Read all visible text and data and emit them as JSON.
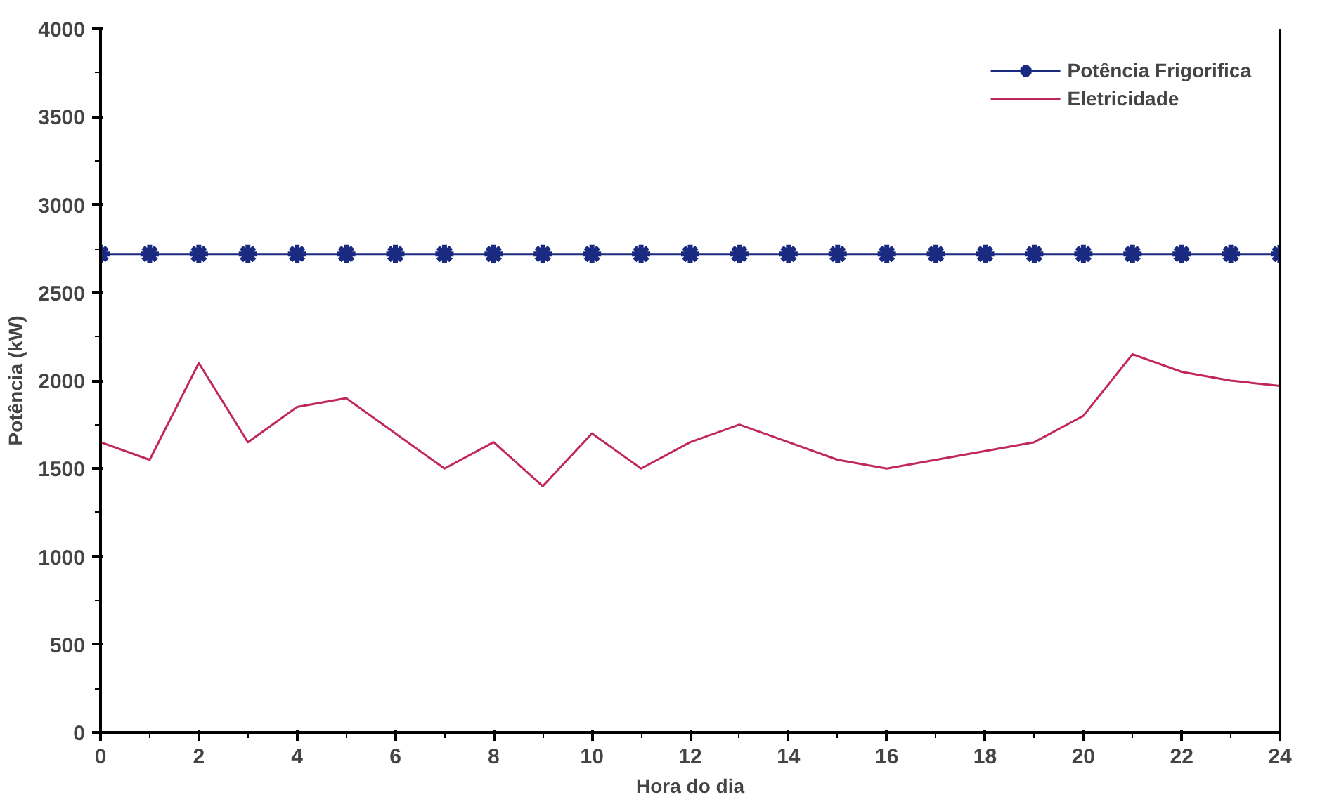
{
  "chart_data": {
    "type": "line",
    "xlabel": "Hora do dia",
    "ylabel": "Potência (kW)",
    "x": [
      0,
      1,
      2,
      3,
      4,
      5,
      6,
      7,
      8,
      9,
      10,
      11,
      12,
      13,
      14,
      15,
      16,
      17,
      18,
      19,
      20,
      21,
      22,
      23,
      24
    ],
    "series": [
      {
        "name": "Potência Frigorifica",
        "color": "#1a2a80",
        "marker": "cross",
        "values": [
          2720,
          2720,
          2720,
          2720,
          2720,
          2720,
          2720,
          2720,
          2720,
          2720,
          2720,
          2720,
          2720,
          2720,
          2720,
          2720,
          2720,
          2720,
          2720,
          2720,
          2720,
          2720,
          2720,
          2720,
          2720
        ]
      },
      {
        "name": "Eletricidade",
        "color": "#c0285a",
        "marker": "none",
        "values": [
          1650,
          1550,
          2100,
          1650,
          1850,
          1900,
          1700,
          1500,
          1650,
          1400,
          1700,
          1500,
          1650,
          1750,
          1650,
          1550,
          1500,
          1550,
          1600,
          1650,
          1800,
          2150,
          2050,
          2000,
          1970
        ]
      }
    ],
    "xlim": [
      0,
      24
    ],
    "xticks": [
      0,
      2,
      4,
      6,
      8,
      10,
      12,
      14,
      16,
      18,
      20,
      22,
      24
    ],
    "ylim": [
      0,
      4000
    ],
    "yticks": [
      0,
      500,
      1000,
      1500,
      2000,
      2500,
      3000,
      3500,
      4000
    ],
    "grid": false,
    "legend": "top right"
  }
}
